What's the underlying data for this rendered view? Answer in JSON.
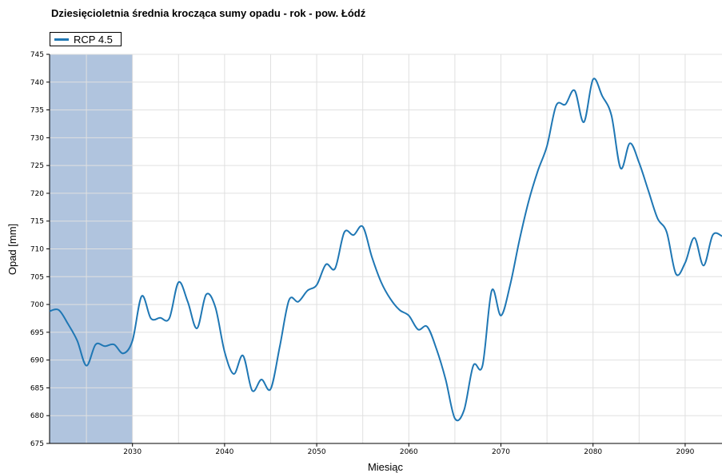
{
  "chart_data": {
    "type": "line",
    "title": "Dziesięcioletnia średnia krocząca sumy opadu - rok - pow. Łódź",
    "xlabel": "Miesiąc",
    "ylabel": "Opad [mm]",
    "xlim": [
      2021,
      2094
    ],
    "ylim": [
      675,
      745
    ],
    "x_ticks": [
      2030,
      2040,
      2050,
      2060,
      2070,
      2080,
      2090
    ],
    "y_ticks": [
      675,
      680,
      685,
      690,
      695,
      700,
      705,
      710,
      715,
      720,
      725,
      730,
      735,
      740,
      745
    ],
    "grid": true,
    "legend_position": "top-left",
    "shaded_region": {
      "x_start": 2021,
      "x_end": 2030,
      "color": "#b0c4de"
    },
    "series": [
      {
        "name": "RCP 4.5",
        "color": "#1f77b4",
        "x": [
          2021.0,
          2022.0,
          2023.0,
          2024.0,
          2025.0,
          2026.0,
          2027.0,
          2028.0,
          2029.0,
          2030.0,
          2031.0,
          2032.0,
          2033.0,
          2034.0,
          2035.0,
          2036.0,
          2037.0,
          2038.0,
          2039.0,
          2040.0,
          2041.0,
          2042.0,
          2043.0,
          2044.0,
          2045.0,
          2046.0,
          2047.0,
          2048.0,
          2049.0,
          2050.0,
          2051.0,
          2052.0,
          2053.0,
          2054.0,
          2055.0,
          2056.0,
          2057.0,
          2058.0,
          2059.0,
          2060.0,
          2061.0,
          2062.0,
          2063.0,
          2064.0,
          2065.0,
          2066.0,
          2067.0,
          2068.0,
          2069.0,
          2070.0,
          2071.0,
          2072.0,
          2073.0,
          2074.0,
          2075.0,
          2076.0,
          2077.0,
          2078.0,
          2079.0,
          2080.0,
          2081.0,
          2082.0,
          2083.0,
          2084.0,
          2085.0,
          2086.0,
          2087.0,
          2088.0,
          2089.0,
          2090.0,
          2091.0,
          2092.0,
          2093.0,
          2094.0
        ],
        "values": [
          698.8,
          699.0,
          696.5,
          693.5,
          689.0,
          692.8,
          692.5,
          692.8,
          691.2,
          693.5,
          701.5,
          697.5,
          697.6,
          697.5,
          704.0,
          700.5,
          695.7,
          701.8,
          699.5,
          691.5,
          687.5,
          690.8,
          684.5,
          686.5,
          684.8,
          692.5,
          700.8,
          700.5,
          702.5,
          703.5,
          707.2,
          706.5,
          713.0,
          712.5,
          714.0,
          708.5,
          704.0,
          701.0,
          699.0,
          698.0,
          695.5,
          696.0,
          692.0,
          686.5,
          679.5,
          681.0,
          689.0,
          689.0,
          702.5,
          698.0,
          703.5,
          711.5,
          718.5,
          724.0,
          728.5,
          735.8,
          736.0,
          738.5,
          732.8,
          740.5,
          737.5,
          734.0,
          724.5,
          729.0,
          725.5,
          720.5,
          715.5,
          713.0,
          705.5,
          707.5,
          712.0,
          707.0,
          712.5,
          712.3
        ]
      }
    ]
  }
}
